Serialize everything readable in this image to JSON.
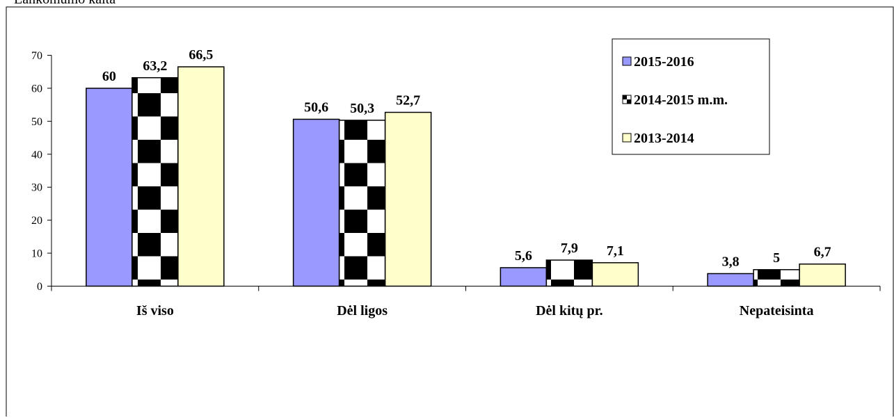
{
  "caption": "Lankomumo kaita",
  "chart_data": {
    "type": "bar",
    "categories": [
      "Iš viso",
      "Dėl ligos",
      "Dėl kitų pr.",
      "Nepateisinta"
    ],
    "series": [
      {
        "name": "2015-2016",
        "values": [
          60,
          50.6,
          5.6,
          3.8
        ],
        "labels": [
          "60",
          "50,6",
          "5,6",
          "3,8"
        ],
        "color": "#9999ff",
        "pattern": "solid"
      },
      {
        "name": "2014-2015 m.m.",
        "values": [
          63.2,
          50.3,
          7.9,
          5
        ],
        "labels": [
          "63,2",
          "50,3",
          "7,9",
          "5"
        ],
        "color": "#000000",
        "pattern": "checker"
      },
      {
        "name": "2013-2014",
        "values": [
          66.5,
          52.7,
          7.1,
          6.7
        ],
        "labels": [
          "66,5",
          "52,7",
          "7,1",
          "6,7"
        ],
        "color": "#ffffcc",
        "pattern": "solid"
      }
    ],
    "ylim": [
      0,
      70
    ],
    "yticks": [
      "0",
      "10",
      "20",
      "30",
      "40",
      "50",
      "60",
      "70"
    ],
    "legend_position": "top-right",
    "grid": false
  }
}
